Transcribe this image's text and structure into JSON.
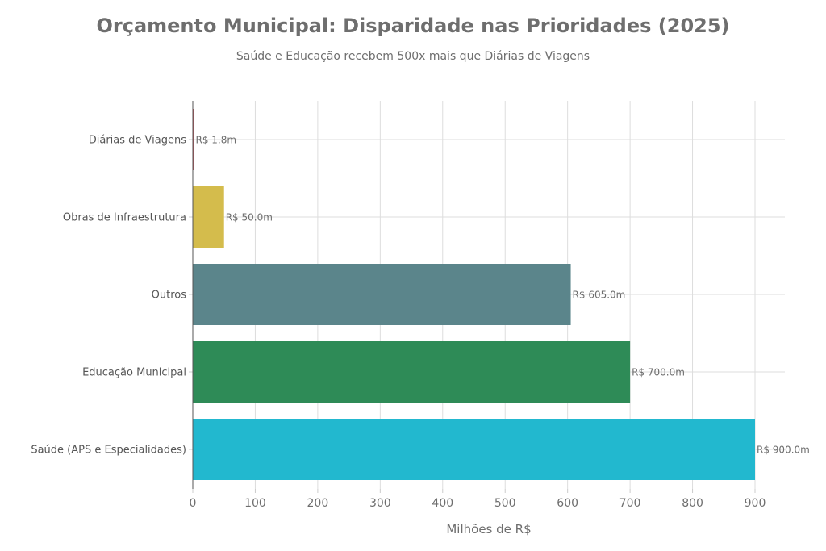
{
  "chart_data": {
    "type": "bar",
    "orientation": "horizontal",
    "title": "Orçamento Municipal: Disparidade nas Prioridades (2025)",
    "subtitle": "Saúde e Educação recebem 500x mais que Diárias de Viagens",
    "xlabel": "Milhões de R$",
    "ylabel": "",
    "xlim": [
      0,
      950
    ],
    "xticks": [
      0,
      100,
      200,
      300,
      400,
      500,
      600,
      700,
      800,
      900
    ],
    "grid": true,
    "categories": [
      "Diárias de Viagens",
      "Obras de Infraestrutura",
      "Outros",
      "Educação Municipal",
      "Saúde (APS e Especialidades)"
    ],
    "values": [
      1.8,
      50.0,
      605.0,
      700.0,
      900.0
    ],
    "data_labels": [
      "R$ 1.8m",
      "R$ 50.0m",
      "R$ 605.0m",
      "R$ 700.0m",
      "R$ 900.0m"
    ],
    "colors": [
      "#b5525c",
      "#d4bc4c",
      "#5b858b",
      "#2e8b57",
      "#22b8cf"
    ]
  }
}
